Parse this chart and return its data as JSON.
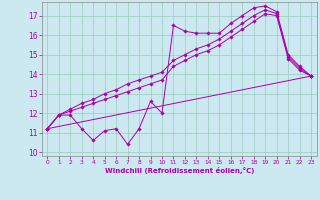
{
  "xlabel": "Windchill (Refroidissement éolien,°C)",
  "bg_color": "#cce8f0",
  "line_color": "#aa00aa",
  "grid_color": "#99ccbb",
  "xlim": [
    -0.5,
    23.5
  ],
  "ylim": [
    9.8,
    17.7
  ],
  "xticks": [
    0,
    1,
    2,
    3,
    4,
    5,
    6,
    7,
    8,
    9,
    10,
    11,
    12,
    13,
    14,
    15,
    16,
    17,
    18,
    19,
    20,
    21,
    22,
    23
  ],
  "yticks": [
    10,
    11,
    12,
    13,
    14,
    15,
    16,
    17
  ],
  "series1_x": [
    0,
    1,
    2,
    3,
    4,
    5,
    6,
    7,
    8,
    9,
    10,
    11,
    12,
    13,
    14,
    15,
    16,
    17,
    18,
    19,
    20,
    21,
    22,
    23
  ],
  "series1_y": [
    11.2,
    11.9,
    11.9,
    11.2,
    10.6,
    11.1,
    11.2,
    10.4,
    11.2,
    12.6,
    12.0,
    16.5,
    16.2,
    16.1,
    16.1,
    16.1,
    16.6,
    17.0,
    17.4,
    17.5,
    17.2,
    15.0,
    14.4,
    13.9
  ],
  "series2_x": [
    0,
    1,
    2,
    3,
    4,
    5,
    6,
    7,
    8,
    9,
    10,
    11,
    12,
    13,
    14,
    15,
    16,
    17,
    18,
    19,
    20,
    21,
    22,
    23
  ],
  "series2_y": [
    11.2,
    11.9,
    12.1,
    12.3,
    12.5,
    12.7,
    12.9,
    13.1,
    13.3,
    13.5,
    13.7,
    14.4,
    14.7,
    15.0,
    15.2,
    15.5,
    15.9,
    16.3,
    16.7,
    17.1,
    17.0,
    14.8,
    14.2,
    13.9
  ],
  "series3_x": [
    0,
    1,
    2,
    3,
    4,
    5,
    6,
    7,
    8,
    9,
    10,
    11,
    12,
    13,
    14,
    15,
    16,
    17,
    18,
    19,
    20,
    21,
    22,
    23
  ],
  "series3_y": [
    11.2,
    11.9,
    12.2,
    12.5,
    12.7,
    13.0,
    13.2,
    13.5,
    13.7,
    13.9,
    14.1,
    14.7,
    15.0,
    15.3,
    15.5,
    15.8,
    16.2,
    16.6,
    17.0,
    17.3,
    17.1,
    14.9,
    14.3,
    13.9
  ],
  "series4_x": [
    0,
    23
  ],
  "series4_y": [
    11.2,
    13.9
  ]
}
